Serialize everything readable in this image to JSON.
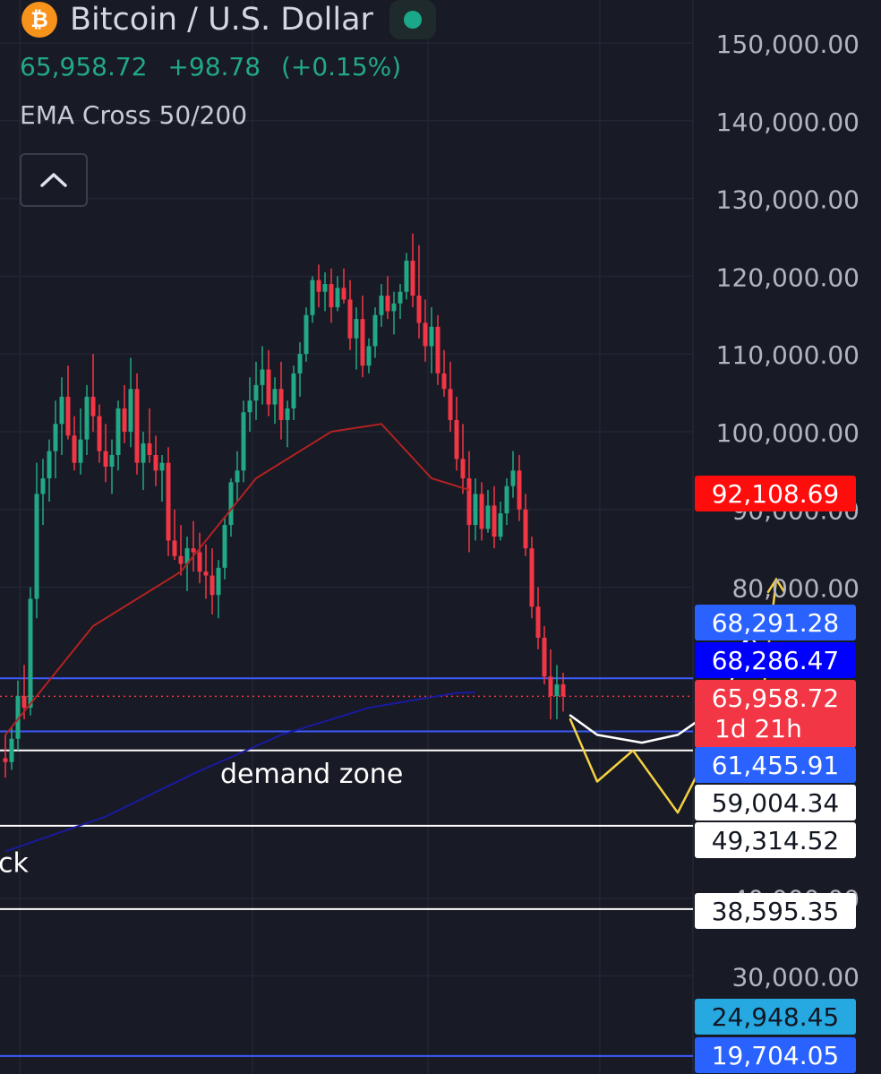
{
  "header": {
    "symbol_title": "Bitcoin / U.S. Dollar",
    "last_price": "65,958.72",
    "change": "+98.78",
    "change_pct": "(+0.15%)",
    "indicator": "EMA Cross 50/200",
    "logo_glyph": "₿"
  },
  "colors": {
    "background": "#181a25",
    "up_candle": "#22a884",
    "down_candle": "#f23645",
    "ema50": "#b22222",
    "ema200": "#1a1a9e",
    "annotation_yellow": "#f5d142",
    "annotation_white": "#ffffff",
    "blue_level": "#2962ff"
  },
  "icons": {
    "collapse": "chevron-up-icon",
    "symbol": "bitcoin-logo-icon",
    "status": "market-open-dot-icon"
  },
  "chart_data": {
    "type": "candlestick",
    "symbol": "BTCUSD",
    "timeframe": "1d",
    "y_axis": {
      "ticks": [
        150000,
        140000,
        130000,
        120000,
        110000,
        100000,
        90000,
        80000,
        40000,
        30000
      ],
      "tick_labels": [
        "150,000.00",
        "140,000.00",
        "130,000.00",
        "120,000.00",
        "110,000.00",
        "100,000.00",
        "90,000.00",
        "80,000.00",
        "40,000.00",
        "30,000.00"
      ],
      "range": [
        19000,
        155000
      ]
    },
    "candles": [
      [
        58000,
        61000,
        55500,
        57500
      ],
      [
        57500,
        62000,
        56500,
        60500
      ],
      [
        60500,
        68000,
        59000,
        66000
      ],
      [
        66000,
        70000,
        63000,
        64500
      ],
      [
        64500,
        80000,
        63500,
        78500
      ],
      [
        78500,
        96000,
        76000,
        92000
      ],
      [
        92000,
        96500,
        88000,
        94000
      ],
      [
        94000,
        99000,
        91000,
        97500
      ],
      [
        97500,
        104000,
        94000,
        101000
      ],
      [
        101000,
        107000,
        97000,
        104500
      ],
      [
        104500,
        108500,
        99000,
        99500
      ],
      [
        99500,
        102000,
        95000,
        96000
      ],
      [
        96000,
        103000,
        94500,
        99000
      ],
      [
        99000,
        106000,
        97000,
        104500
      ],
      [
        104500,
        110000,
        100000,
        102000
      ],
      [
        102000,
        103500,
        96000,
        97500
      ],
      [
        97500,
        101000,
        93500,
        95500
      ],
      [
        95500,
        99000,
        92000,
        97000
      ],
      [
        97000,
        104000,
        95000,
        103000
      ],
      [
        103000,
        106000,
        98500,
        100000
      ],
      [
        100000,
        109500,
        98000,
        105500
      ],
      [
        105500,
        107500,
        94500,
        96000
      ],
      [
        96000,
        100000,
        92500,
        98500
      ],
      [
        98500,
        103000,
        96000,
        97000
      ],
      [
        97000,
        99500,
        93000,
        95000
      ],
      [
        95000,
        97000,
        91000,
        96000
      ],
      [
        96000,
        98000,
        84000,
        86000
      ],
      [
        86000,
        90000,
        83500,
        84000
      ],
      [
        84000,
        88000,
        81500,
        83000
      ],
      [
        83000,
        86500,
        79500,
        85000
      ],
      [
        85000,
        88500,
        82000,
        84500
      ],
      [
        84500,
        87000,
        80500,
        82000
      ],
      [
        82000,
        85500,
        78500,
        81500
      ],
      [
        81500,
        85000,
        76500,
        79000
      ],
      [
        79000,
        83500,
        76000,
        82500
      ],
      [
        82500,
        89000,
        81000,
        88000
      ],
      [
        88000,
        94000,
        86500,
        93500
      ],
      [
        93500,
        97500,
        91000,
        95000
      ],
      [
        95000,
        104000,
        93500,
        102500
      ],
      [
        102500,
        107000,
        100000,
        104000
      ],
      [
        104000,
        109000,
        101500,
        106000
      ],
      [
        106000,
        111000,
        103500,
        108000
      ],
      [
        108000,
        110500,
        102000,
        103500
      ],
      [
        103500,
        107000,
        101000,
        105500
      ],
      [
        105500,
        109000,
        99000,
        101500
      ],
      [
        101500,
        104000,
        98000,
        103000
      ],
      [
        103000,
        108500,
        101500,
        107500
      ],
      [
        107500,
        111500,
        104500,
        110000
      ],
      [
        110000,
        116000,
        109000,
        115000
      ],
      [
        115000,
        120000,
        114000,
        119500
      ],
      [
        119500,
        121500,
        116000,
        118000
      ],
      [
        118000,
        120500,
        115500,
        119000
      ],
      [
        119000,
        121000,
        114000,
        116000
      ],
      [
        116000,
        120000,
        115500,
        118500
      ],
      [
        118500,
        121000,
        116500,
        117000
      ],
      [
        117000,
        119500,
        110500,
        112000
      ],
      [
        112000,
        116000,
        108000,
        114500
      ],
      [
        114500,
        117500,
        107000,
        108500
      ],
      [
        108500,
        112000,
        107500,
        111000
      ],
      [
        111000,
        116000,
        109500,
        115000
      ],
      [
        115000,
        119000,
        113500,
        117500
      ],
      [
        117500,
        120000,
        114500,
        115500
      ],
      [
        115500,
        118000,
        112500,
        116500
      ],
      [
        116500,
        119000,
        114500,
        118000
      ],
      [
        118000,
        123000,
        117000,
        122000
      ],
      [
        122000,
        125500,
        116000,
        117500
      ],
      [
        117500,
        124000,
        112000,
        114000
      ],
      [
        114000,
        117000,
        109000,
        111000
      ],
      [
        111000,
        116000,
        107500,
        113500
      ],
      [
        113500,
        115000,
        106000,
        107500
      ],
      [
        107500,
        110500,
        104500,
        105500
      ],
      [
        105500,
        109000,
        100000,
        101500
      ],
      [
        101500,
        104500,
        95000,
        96500
      ],
      [
        96500,
        101000,
        92000,
        94000
      ],
      [
        94000,
        97500,
        84500,
        88000
      ],
      [
        88000,
        94000,
        86000,
        92000
      ],
      [
        92000,
        93500,
        86000,
        87500
      ],
      [
        87500,
        92500,
        87000,
        90500
      ],
      [
        90500,
        93000,
        85000,
        86500
      ],
      [
        86500,
        91000,
        86000,
        89500
      ],
      [
        89500,
        94000,
        88000,
        93000
      ],
      [
        93000,
        97500,
        91500,
        95000
      ],
      [
        95000,
        97000,
        88500,
        90000
      ],
      [
        90000,
        92000,
        84000,
        85000
      ],
      [
        85000,
        86500,
        76000,
        77500
      ],
      [
        77500,
        80000,
        72000,
        73500
      ],
      [
        73500,
        75000,
        67500,
        68500
      ],
      [
        68500,
        72000,
        63000,
        66000
      ],
      [
        66000,
        70000,
        63000,
        67500
      ],
      [
        67500,
        69000,
        64000,
        65958.72
      ]
    ],
    "ema50_points": [
      [
        0,
        61000
      ],
      [
        14,
        75000
      ],
      [
        28,
        82000
      ],
      [
        40,
        94000
      ],
      [
        52,
        100000
      ],
      [
        60,
        101000
      ],
      [
        68,
        94000
      ],
      [
        74,
        92500
      ]
    ],
    "ema200_points": [
      [
        0,
        46000
      ],
      [
        16,
        50500
      ],
      [
        30,
        56000
      ],
      [
        44,
        61000
      ],
      [
        58,
        64500
      ],
      [
        72,
        66400
      ],
      [
        75,
        66500
      ]
    ],
    "horizontal_levels": [
      {
        "label": "92,108.69",
        "value": 92108.69,
        "bg": "#ff0d0d",
        "fg": "#ffffff",
        "line": null
      },
      {
        "label": "68,291.28",
        "value": 68291.28,
        "bg": "#2962ff",
        "fg": "#ffffff",
        "line": null
      },
      {
        "label": "68,286.47",
        "value": 68286.47,
        "bg": "#0000ff",
        "fg": "#ffffff",
        "line": "#3d5afe"
      },
      {
        "label": "65,958.72",
        "value": 65958.72,
        "bg": "#f23645",
        "fg": "#ffffff",
        "line": "#f23645",
        "sub": "1d 21h"
      },
      {
        "label": "61,455.91",
        "value": 61455.91,
        "bg": "#2962ff",
        "fg": "#ffffff",
        "line": "#3d5afe"
      },
      {
        "label": "59,004.34",
        "value": 59004.34,
        "bg": "#ffffff",
        "fg": "#131722",
        "line": "#ffffff"
      },
      {
        "label": "49,314.52",
        "value": 49314.52,
        "bg": "#ffffff",
        "fg": "#131722",
        "line": "#ffffff"
      },
      {
        "label": "38,595.35",
        "value": 38595.35,
        "bg": "#ffffff",
        "fg": "#131722",
        "line": "#ffffff"
      },
      {
        "label": "24,948.45",
        "value": 24948.45,
        "bg": "#26a8e0",
        "fg": "#131722",
        "line": null
      },
      {
        "label": "19,704.05",
        "value": 19704.05,
        "bg": "#2962ff",
        "fg": "#ffffff",
        "line": "#3d5afe"
      }
    ],
    "annotations": [
      {
        "text": "demand zone",
        "anchor_value": 56000
      },
      {
        "text": "ck",
        "anchor_value": 44500
      }
    ],
    "projection_yellow": [
      [
        0,
        63000
      ],
      [
        3,
        55000
      ],
      [
        7,
        59000
      ],
      [
        12,
        51000
      ],
      [
        16,
        60000
      ],
      [
        21,
        61000
      ],
      [
        23,
        81000
      ]
    ],
    "projection_white": [
      [
        0,
        63500
      ],
      [
        3,
        61000
      ],
      [
        8,
        60000
      ],
      [
        12,
        61000
      ],
      [
        17,
        65000
      ],
      [
        20,
        74000
      ]
    ]
  }
}
